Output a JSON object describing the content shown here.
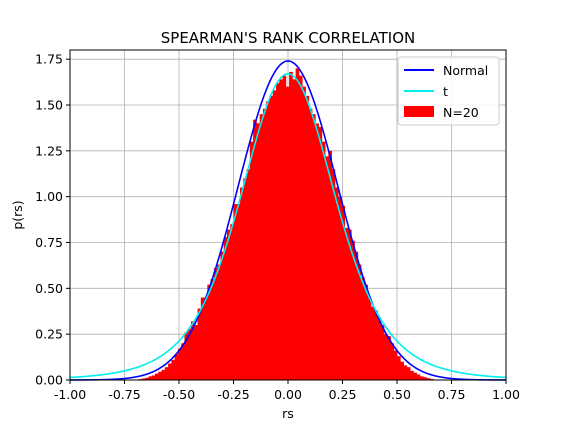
{
  "chart_data": {
    "type": "bar",
    "title": "SPEARMAN'S RANK CORRELATION",
    "xlabel": "rs",
    "ylabel": "p(rs)",
    "xlim": [
      -1.0,
      1.0
    ],
    "ylim": [
      0.0,
      1.8
    ],
    "xticks": [
      "-1.00",
      "-0.75",
      "-0.50",
      "-0.25",
      "0.00",
      "0.25",
      "0.50",
      "0.75",
      "1.00"
    ],
    "yticks": [
      "0.00",
      "0.25",
      "0.50",
      "0.75",
      "1.00",
      "1.25",
      "1.50",
      "1.75"
    ],
    "grid": true,
    "legend_position": "top-right",
    "legend": [
      "Normal",
      "t",
      "N=20"
    ],
    "colors": {
      "normal": "#0000ff",
      "t": "#00eeee",
      "hist": "#ff0000"
    },
    "histogram": {
      "name": "N=20",
      "bin_width": 0.015,
      "bins": [
        [
          -0.685,
          0.005
        ],
        [
          -0.67,
          0.008
        ],
        [
          -0.655,
          0.012
        ],
        [
          -0.64,
          0.02
        ],
        [
          -0.625,
          0.025
        ],
        [
          -0.61,
          0.035
        ],
        [
          -0.595,
          0.045
        ],
        [
          -0.58,
          0.055
        ],
        [
          -0.565,
          0.07
        ],
        [
          -0.55,
          0.09
        ],
        [
          -0.535,
          0.11
        ],
        [
          -0.52,
          0.14
        ],
        [
          -0.505,
          0.17
        ],
        [
          -0.49,
          0.2
        ],
        [
          -0.475,
          0.26
        ],
        [
          -0.46,
          0.28
        ],
        [
          -0.445,
          0.32
        ],
        [
          -0.43,
          0.3
        ],
        [
          -0.415,
          0.39
        ],
        [
          -0.4,
          0.45
        ],
        [
          -0.385,
          0.45
        ],
        [
          -0.37,
          0.52
        ],
        [
          -0.355,
          0.55
        ],
        [
          -0.34,
          0.61
        ],
        [
          -0.325,
          0.63
        ],
        [
          -0.31,
          0.7
        ],
        [
          -0.295,
          0.78
        ],
        [
          -0.28,
          0.82
        ],
        [
          -0.265,
          0.85
        ],
        [
          -0.25,
          0.96
        ],
        [
          -0.235,
          0.96
        ],
        [
          -0.22,
          1.05
        ],
        [
          -0.205,
          1.1
        ],
        [
          -0.19,
          1.15
        ],
        [
          -0.175,
          1.3
        ],
        [
          -0.16,
          1.42
        ],
        [
          -0.145,
          1.4
        ],
        [
          -0.13,
          1.45
        ],
        [
          -0.115,
          1.48
        ],
        [
          -0.1,
          1.52
        ],
        [
          -0.085,
          1.55
        ],
        [
          -0.07,
          1.58
        ],
        [
          -0.055,
          1.62
        ],
        [
          -0.04,
          1.64
        ],
        [
          -0.025,
          1.66
        ],
        [
          -0.01,
          1.6
        ],
        [
          0.005,
          1.68
        ],
        [
          0.02,
          1.64
        ],
        [
          0.035,
          1.7
        ],
        [
          0.05,
          1.66
        ],
        [
          0.065,
          1.6
        ],
        [
          0.08,
          1.55
        ],
        [
          0.095,
          1.48
        ],
        [
          0.11,
          1.45
        ],
        [
          0.125,
          1.4
        ],
        [
          0.14,
          1.38
        ],
        [
          0.155,
          1.3
        ],
        [
          0.17,
          1.22
        ],
        [
          0.185,
          1.25
        ],
        [
          0.2,
          1.15
        ],
        [
          0.215,
          1.05
        ],
        [
          0.23,
          1.0
        ],
        [
          0.245,
          0.95
        ],
        [
          0.26,
          0.83
        ],
        [
          0.275,
          0.82
        ],
        [
          0.29,
          0.76
        ],
        [
          0.305,
          0.7
        ],
        [
          0.32,
          0.63
        ],
        [
          0.335,
          0.56
        ],
        [
          0.35,
          0.52
        ],
        [
          0.365,
          0.45
        ],
        [
          0.38,
          0.4
        ],
        [
          0.395,
          0.38
        ],
        [
          0.41,
          0.33
        ],
        [
          0.425,
          0.3
        ],
        [
          0.44,
          0.25
        ],
        [
          0.455,
          0.24
        ],
        [
          0.47,
          0.2
        ],
        [
          0.485,
          0.16
        ],
        [
          0.5,
          0.13
        ],
        [
          0.515,
          0.1
        ],
        [
          0.53,
          0.08
        ],
        [
          0.545,
          0.07
        ],
        [
          0.56,
          0.05
        ],
        [
          0.575,
          0.04
        ],
        [
          0.59,
          0.03
        ],
        [
          0.605,
          0.02
        ],
        [
          0.62,
          0.015
        ],
        [
          0.635,
          0.01
        ],
        [
          0.65,
          0.006
        ],
        [
          0.665,
          0.003
        ]
      ]
    },
    "curves": [
      {
        "name": "Normal",
        "peak": 1.74,
        "mean": 0.0,
        "sigma": 0.229,
        "kind": "normal"
      },
      {
        "name": "t",
        "peak": 1.67,
        "mean": 0.0,
        "scale": 0.225,
        "df": 5,
        "kind": "t"
      }
    ]
  }
}
